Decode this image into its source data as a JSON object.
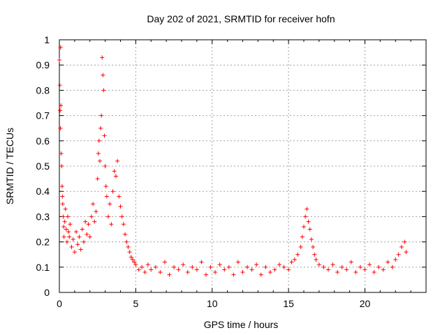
{
  "chart_data": {
    "type": "scatter",
    "title": "Day 202 of 2021, SRMTID for receiver hofn",
    "xlabel": "GPS time / hours",
    "ylabel": "SRMTID / TECUs",
    "xlim": [
      0,
      24
    ],
    "ylim": [
      0,
      1
    ],
    "x_ticks": [
      0,
      5,
      10,
      15,
      20
    ],
    "x_tick_labels": [
      "0",
      "5",
      "10",
      "15",
      "20"
    ],
    "y_ticks": [
      0,
      0.1,
      0.2,
      0.3,
      0.4,
      0.5,
      0.6,
      0.7,
      0.8,
      0.9,
      1
    ],
    "y_tick_labels": [
      "0",
      "0.1",
      "0.2",
      "0.3",
      "0.4",
      "0.5",
      "0.6",
      "0.7",
      "0.8",
      "0.9",
      "1"
    ],
    "grid": true,
    "marker": "+",
    "series": [
      {
        "name": "SRMTID",
        "color": "#ff0000",
        "x": [
          0.0,
          0.03,
          0.05,
          0.07,
          0.08,
          0.1,
          0.12,
          0.15,
          0.18,
          0.2,
          0.22,
          0.25,
          0.28,
          0.3,
          0.35,
          0.4,
          0.45,
          0.5,
          0.55,
          0.6,
          0.65,
          0.7,
          0.8,
          0.9,
          1.0,
          1.1,
          1.2,
          1.3,
          1.4,
          1.5,
          1.6,
          1.7,
          1.8,
          1.9,
          2.0,
          2.1,
          2.2,
          2.3,
          2.4,
          2.5,
          2.55,
          2.6,
          2.65,
          2.7,
          2.75,
          2.8,
          2.85,
          2.9,
          2.95,
          3.0,
          3.05,
          3.1,
          3.2,
          3.3,
          3.4,
          3.5,
          3.6,
          3.7,
          3.8,
          3.9,
          4.0,
          4.1,
          4.2,
          4.3,
          4.4,
          4.5,
          4.6,
          4.7,
          4.8,
          4.9,
          5.0,
          5.2,
          5.4,
          5.6,
          5.8,
          6.0,
          6.3,
          6.6,
          6.9,
          7.2,
          7.5,
          7.8,
          8.1,
          8.4,
          8.7,
          9.0,
          9.3,
          9.6,
          9.9,
          10.2,
          10.5,
          10.8,
          11.1,
          11.4,
          11.7,
          12.0,
          12.3,
          12.6,
          12.9,
          13.2,
          13.5,
          13.8,
          14.1,
          14.4,
          14.7,
          15.0,
          15.2,
          15.4,
          15.6,
          15.8,
          15.9,
          16.0,
          16.1,
          16.2,
          16.3,
          16.4,
          16.5,
          16.6,
          16.7,
          16.8,
          17.0,
          17.3,
          17.6,
          17.9,
          18.2,
          18.5,
          18.8,
          19.1,
          19.4,
          19.7,
          20.0,
          20.3,
          20.6,
          20.9,
          21.2,
          21.5,
          21.8,
          22.0,
          22.2,
          22.4,
          22.6,
          22.7
        ],
        "y": [
          0.92,
          0.82,
          0.72,
          0.65,
          0.97,
          0.74,
          0.55,
          0.5,
          0.42,
          0.38,
          0.35,
          0.3,
          0.26,
          0.22,
          0.28,
          0.33,
          0.25,
          0.2,
          0.3,
          0.24,
          0.22,
          0.27,
          0.18,
          0.21,
          0.16,
          0.24,
          0.19,
          0.22,
          0.17,
          0.25,
          0.2,
          0.28,
          0.23,
          0.27,
          0.22,
          0.3,
          0.35,
          0.28,
          0.32,
          0.45,
          0.55,
          0.6,
          0.52,
          0.65,
          0.7,
          0.93,
          0.86,
          0.8,
          0.62,
          0.5,
          0.42,
          0.38,
          0.3,
          0.35,
          0.27,
          0.4,
          0.48,
          0.46,
          0.52,
          0.38,
          0.34,
          0.3,
          0.27,
          0.23,
          0.2,
          0.18,
          0.16,
          0.14,
          0.13,
          0.12,
          0.11,
          0.09,
          0.1,
          0.08,
          0.11,
          0.09,
          0.1,
          0.08,
          0.12,
          0.07,
          0.1,
          0.09,
          0.11,
          0.08,
          0.1,
          0.09,
          0.12,
          0.07,
          0.1,
          0.08,
          0.11,
          0.09,
          0.1,
          0.07,
          0.12,
          0.08,
          0.1,
          0.09,
          0.11,
          0.07,
          0.1,
          0.08,
          0.09,
          0.11,
          0.1,
          0.09,
          0.12,
          0.13,
          0.15,
          0.18,
          0.22,
          0.26,
          0.3,
          0.33,
          0.28,
          0.25,
          0.21,
          0.18,
          0.15,
          0.13,
          0.11,
          0.1,
          0.09,
          0.11,
          0.08,
          0.1,
          0.09,
          0.12,
          0.08,
          0.1,
          0.09,
          0.11,
          0.08,
          0.1,
          0.09,
          0.12,
          0.1,
          0.13,
          0.15,
          0.18,
          0.2,
          0.16
        ]
      }
    ]
  }
}
